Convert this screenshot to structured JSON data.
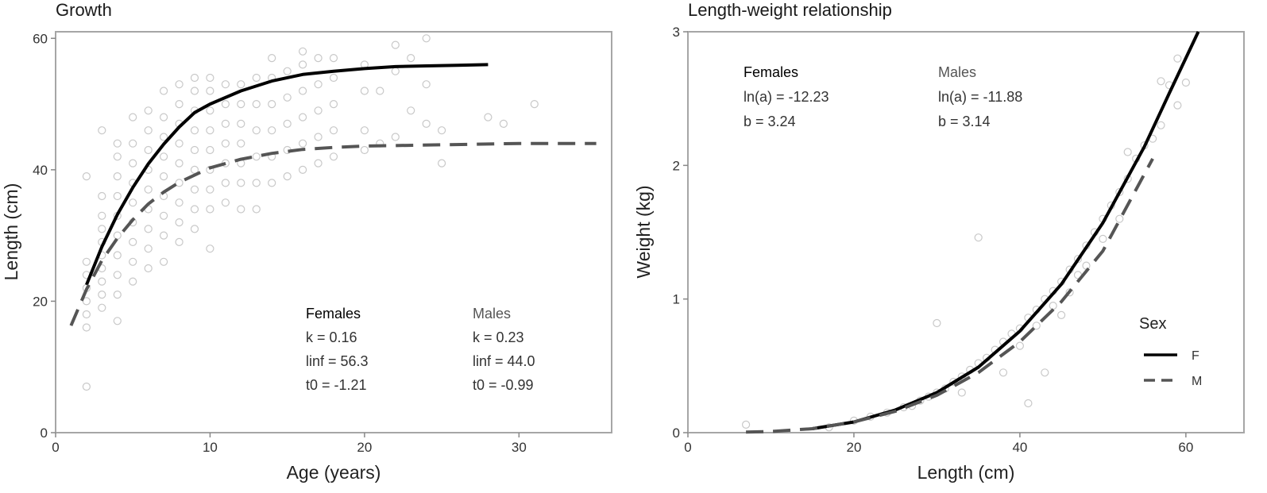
{
  "chart_data": [
    {
      "type": "scatter",
      "title": "Growth",
      "xlabel": "Age (years)",
      "ylabel": "Length  (cm)",
      "xlim": [
        0,
        36
      ],
      "ylim": [
        0,
        61
      ],
      "xticks": [
        "0",
        "10",
        "20",
        "30"
      ],
      "yticks": [
        "0",
        "20",
        "40",
        "60"
      ],
      "grid": false,
      "series": [
        {
          "name": "F",
          "style": "solid",
          "x": [
            2,
            3,
            4,
            5,
            6,
            7,
            8,
            9,
            10,
            12,
            14,
            16,
            18,
            20,
            22,
            24,
            26,
            28
          ],
          "values": [
            22.5,
            28.3,
            33.2,
            37.3,
            40.9,
            43.9,
            46.5,
            48.7,
            50.0,
            52.0,
            53.5,
            54.5,
            55.0,
            55.4,
            55.7,
            55.8,
            55.9,
            56.0
          ]
        },
        {
          "name": "M",
          "style": "dashed",
          "x": [
            1,
            2,
            3,
            4,
            5,
            6,
            7,
            8,
            10,
            12,
            14,
            16,
            18,
            20,
            25,
            30,
            35
          ],
          "values": [
            16.3,
            21.8,
            26.2,
            29.6,
            32.4,
            34.8,
            36.6,
            38.1,
            40.3,
            41.6,
            42.5,
            43.1,
            43.4,
            43.6,
            43.8,
            44.0,
            44.0
          ]
        }
      ],
      "points_note": "grey open circles, individual fish",
      "points": [
        [
          2,
          16
        ],
        [
          2,
          18
        ],
        [
          2,
          20
        ],
        [
          2,
          22
        ],
        [
          2,
          24
        ],
        [
          2,
          26
        ],
        [
          2,
          7
        ],
        [
          2,
          39
        ],
        [
          3,
          19
        ],
        [
          3,
          21
        ],
        [
          3,
          23
        ],
        [
          3,
          25
        ],
        [
          3,
          27
        ],
        [
          3,
          29
        ],
        [
          3,
          31
        ],
        [
          3,
          33
        ],
        [
          3,
          36
        ],
        [
          3,
          46
        ],
        [
          4,
          17
        ],
        [
          4,
          21
        ],
        [
          4,
          24
        ],
        [
          4,
          27
        ],
        [
          4,
          30
        ],
        [
          4,
          33
        ],
        [
          4,
          36
        ],
        [
          4,
          39
        ],
        [
          4,
          42
        ],
        [
          4,
          44
        ],
        [
          5,
          23
        ],
        [
          5,
          26
        ],
        [
          5,
          29
        ],
        [
          5,
          32
        ],
        [
          5,
          35
        ],
        [
          5,
          38
        ],
        [
          5,
          41
        ],
        [
          5,
          44
        ],
        [
          5,
          48
        ],
        [
          6,
          25
        ],
        [
          6,
          28
        ],
        [
          6,
          31
        ],
        [
          6,
          34
        ],
        [
          6,
          37
        ],
        [
          6,
          40
        ],
        [
          6,
          43
        ],
        [
          6,
          46
        ],
        [
          6,
          49
        ],
        [
          7,
          26
        ],
        [
          7,
          30
        ],
        [
          7,
          33
        ],
        [
          7,
          36
        ],
        [
          7,
          39
        ],
        [
          7,
          42
        ],
        [
          7,
          45
        ],
        [
          7,
          48
        ],
        [
          7,
          52
        ],
        [
          8,
          29
        ],
        [
          8,
          32
        ],
        [
          8,
          35
        ],
        [
          8,
          38
        ],
        [
          8,
          41
        ],
        [
          8,
          44
        ],
        [
          8,
          47
        ],
        [
          8,
          50
        ],
        [
          8,
          53
        ],
        [
          9,
          31
        ],
        [
          9,
          34
        ],
        [
          9,
          37
        ],
        [
          9,
          40
        ],
        [
          9,
          43
        ],
        [
          9,
          46
        ],
        [
          9,
          49
        ],
        [
          9,
          52
        ],
        [
          9,
          54
        ],
        [
          10,
          28
        ],
        [
          10,
          34
        ],
        [
          10,
          37
        ],
        [
          10,
          40
        ],
        [
          10,
          43
        ],
        [
          10,
          46
        ],
        [
          10,
          49
        ],
        [
          10,
          52
        ],
        [
          10,
          54
        ],
        [
          11,
          35
        ],
        [
          11,
          38
        ],
        [
          11,
          41
        ],
        [
          11,
          44
        ],
        [
          11,
          47
        ],
        [
          11,
          50
        ],
        [
          11,
          53
        ],
        [
          12,
          34
        ],
        [
          12,
          38
        ],
        [
          12,
          41
        ],
        [
          12,
          44
        ],
        [
          12,
          47
        ],
        [
          12,
          50
        ],
        [
          12,
          53
        ],
        [
          13,
          34
        ],
        [
          13,
          38
        ],
        [
          13,
          42
        ],
        [
          13,
          46
        ],
        [
          13,
          50
        ],
        [
          13,
          54
        ],
        [
          14,
          38
        ],
        [
          14,
          42
        ],
        [
          14,
          46
        ],
        [
          14,
          50
        ],
        [
          14,
          54
        ],
        [
          14,
          57
        ],
        [
          15,
          39
        ],
        [
          15,
          43
        ],
        [
          15,
          47
        ],
        [
          15,
          51
        ],
        [
          15,
          55
        ],
        [
          16,
          40
        ],
        [
          16,
          44
        ],
        [
          16,
          48
        ],
        [
          16,
          52
        ],
        [
          16,
          56
        ],
        [
          16,
          58
        ],
        [
          17,
          41
        ],
        [
          17,
          45
        ],
        [
          17,
          49
        ],
        [
          17,
          53
        ],
        [
          17,
          57
        ],
        [
          18,
          42
        ],
        [
          18,
          46
        ],
        [
          18,
          50
        ],
        [
          18,
          54
        ],
        [
          18,
          57
        ],
        [
          20,
          43
        ],
        [
          20,
          46
        ],
        [
          20,
          52
        ],
        [
          20,
          56
        ],
        [
          21,
          44
        ],
        [
          21,
          52
        ],
        [
          22,
          45
        ],
        [
          22,
          55
        ],
        [
          22,
          59
        ],
        [
          23,
          49
        ],
        [
          23,
          57
        ],
        [
          24,
          47
        ],
        [
          24,
          53
        ],
        [
          24,
          60
        ],
        [
          25,
          46
        ],
        [
          25,
          41
        ],
        [
          28,
          48
        ],
        [
          29,
          47
        ],
        [
          31,
          50
        ]
      ],
      "annotations": {
        "females": {
          "header": "Females",
          "k": "k = 0.16",
          "linf": "linf = 56.3",
          "t0": "t0 = -1.21"
        },
        "males": {
          "header": "Males",
          "k": "k = 0.23",
          "linf": "linf = 44.0",
          "t0": "t0 = -0.99"
        }
      }
    },
    {
      "type": "scatter",
      "title": "Length-weight relationship",
      "xlabel": "Length  (cm)",
      "ylabel": "Weight  (kg)",
      "xlim": [
        0,
        67
      ],
      "ylim": [
        0,
        3
      ],
      "xticks": [
        "0",
        "20",
        "40",
        "60"
      ],
      "yticks": [
        "0",
        "1",
        "2",
        "3"
      ],
      "grid": false,
      "series": [
        {
          "name": "F",
          "style": "solid",
          "x": [
            15,
            20,
            25,
            30,
            35,
            40,
            45,
            50,
            55,
            58,
            61.5
          ],
          "values": [
            0.03,
            0.08,
            0.17,
            0.3,
            0.49,
            0.76,
            1.11,
            1.57,
            2.14,
            2.54,
            3.0
          ]
        },
        {
          "name": "M",
          "style": "dashed",
          "x": [
            7,
            10,
            15,
            20,
            25,
            30,
            35,
            40,
            45,
            50,
            56
          ],
          "values": [
            0.004,
            0.009,
            0.03,
            0.08,
            0.16,
            0.28,
            0.45,
            0.68,
            0.98,
            1.36,
            2.05
          ]
        }
      ],
      "points_note": "grey open circles, individual fish",
      "points": [
        [
          7,
          0.06
        ],
        [
          17,
          0.04
        ],
        [
          20,
          0.09
        ],
        [
          22,
          0.12
        ],
        [
          24,
          0.15
        ],
        [
          26,
          0.19
        ],
        [
          28,
          0.24
        ],
        [
          29,
          0.27
        ],
        [
          30,
          0.3
        ],
        [
          31,
          0.33
        ],
        [
          32,
          0.38
        ],
        [
          33,
          0.42
        ],
        [
          34,
          0.47
        ],
        [
          35,
          0.52
        ],
        [
          35,
          1.46
        ],
        [
          36,
          0.56
        ],
        [
          37,
          0.62
        ],
        [
          38,
          0.68
        ],
        [
          39,
          0.74
        ],
        [
          40,
          0.78
        ],
        [
          40,
          0.65
        ],
        [
          41,
          0.86
        ],
        [
          41,
          0.22
        ],
        [
          42,
          0.92
        ],
        [
          42,
          0.8
        ],
        [
          43,
          1.0
        ],
        [
          43,
          0.45
        ],
        [
          44,
          1.06
        ],
        [
          44,
          0.95
        ],
        [
          45,
          1.13
        ],
        [
          46,
          1.22
        ],
        [
          46,
          1.05
        ],
        [
          47,
          1.3
        ],
        [
          47,
          1.18
        ],
        [
          48,
          1.4
        ],
        [
          48,
          1.25
        ],
        [
          49,
          1.5
        ],
        [
          50,
          1.6
        ],
        [
          50,
          1.45
        ],
        [
          51,
          1.7
        ],
        [
          52,
          1.8
        ],
        [
          52,
          1.6
        ],
        [
          53,
          1.9
        ],
        [
          53,
          2.1
        ],
        [
          54,
          2.05
        ],
        [
          55,
          2.15
        ],
        [
          56,
          2.2
        ],
        [
          57,
          2.63
        ],
        [
          57,
          2.3
        ],
        [
          58,
          2.6
        ],
        [
          59,
          2.45
        ],
        [
          59,
          2.8
        ],
        [
          60,
          2.62
        ],
        [
          30,
          0.82
        ],
        [
          38,
          0.45
        ],
        [
          45,
          0.88
        ],
        [
          27,
          0.2
        ],
        [
          33,
          0.3
        ]
      ],
      "annotations": {
        "females": {
          "header": "Females",
          "lna": "ln(a) = -12.23",
          "b": "b = 3.24"
        },
        "males": {
          "header": "Males",
          "lna": "ln(a) = -11.88",
          "b": "b = 3.14"
        }
      },
      "legend": {
        "title": "Sex",
        "placement": "bottom-right",
        "items": [
          "F",
          "M"
        ]
      }
    }
  ],
  "colors": {
    "female_line": "#000000",
    "male_line": "#555555",
    "points": "#c8c8c8",
    "frame": "#a6a6a6"
  }
}
